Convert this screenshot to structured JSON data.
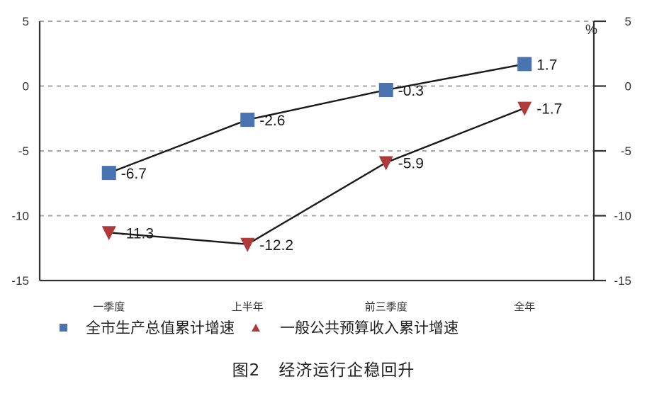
{
  "chart_data": {
    "type": "line",
    "title": "图2 经济运行企稳回升",
    "figure_number": "图2",
    "caption_text": "经济运行企稳回升",
    "xlabel": "",
    "ylabel": "",
    "y_unit": "%",
    "categories": [
      "一季度",
      "上半年",
      "前三季度",
      "全年"
    ],
    "ylim": [
      -15,
      5
    ],
    "yticks": [
      5,
      0,
      -5,
      -10,
      -15
    ],
    "y_tick_labels": [
      "5",
      "0",
      "-5",
      "-10",
      "-15"
    ],
    "secondary_y": true,
    "grid": "horizontal-dashed",
    "legend_position": "bottom",
    "series": [
      {
        "name": "全市生产总值累计增速",
        "marker": "square",
        "color": "#4a73b2",
        "values": [
          -6.7,
          -2.6,
          -0.3,
          1.7
        ],
        "labels": [
          "-6.7",
          "-2.6",
          "-0.3",
          "1.7"
        ]
      },
      {
        "name": "一般公共预算收入累计增速",
        "marker": "triangle-down",
        "legend_marker": "triangle-up",
        "color": "#b03a3a",
        "values": [
          -11.3,
          -12.2,
          -5.9,
          -1.7
        ],
        "labels": [
          "-11.3",
          "-12.2",
          "-5.9",
          "-1.7"
        ]
      }
    ]
  },
  "colors": {
    "axis": "#333333",
    "grid": "#a6a6a6",
    "line": "#1a1a1a",
    "series1": "#4a73b2",
    "series2": "#b03a3a"
  },
  "legend": {
    "items": [
      {
        "label": "全市生产总值累计增速"
      },
      {
        "label": "一般公共预算收入累计增速"
      }
    ]
  },
  "caption": {
    "figure_number": "图2",
    "text": "经济运行企稳回升"
  }
}
